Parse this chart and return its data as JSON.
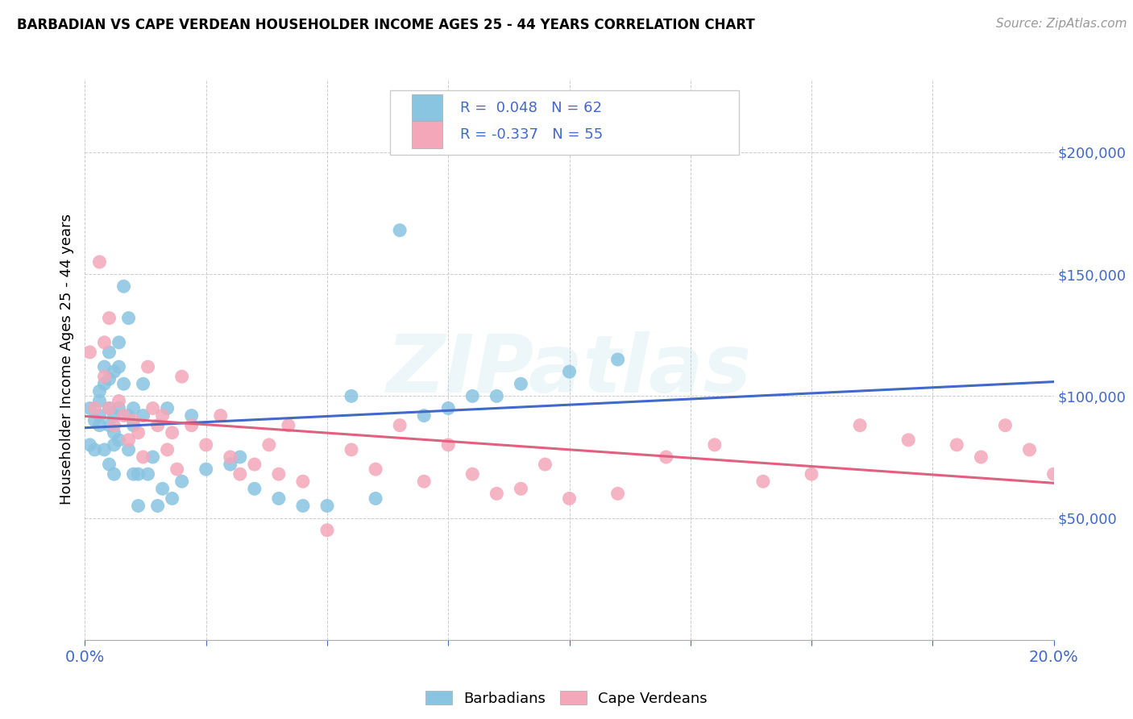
{
  "title": "BARBADIAN VS CAPE VERDEAN HOUSEHOLDER INCOME AGES 25 - 44 YEARS CORRELATION CHART",
  "source": "Source: ZipAtlas.com",
  "ylabel": "Householder Income Ages 25 - 44 years",
  "xmin": 0.0,
  "xmax": 0.2,
  "ymin": 0,
  "ymax": 230000,
  "right_yticks": [
    50000,
    100000,
    150000,
    200000
  ],
  "right_yticklabels": [
    "$50,000",
    "$100,000",
    "$150,000",
    "$200,000"
  ],
  "barbadian_color": "#89c4e1",
  "cape_verdean_color": "#f4a7b9",
  "barbadian_R": 0.048,
  "barbadian_N": 62,
  "cape_verdean_R": -0.337,
  "cape_verdean_N": 55,
  "trend_blue_color": "#4169c8",
  "trend_pink_color": "#e06080",
  "watermark": "ZIPatlas",
  "label_color": "#4169c8",
  "barbadian_x": [
    0.001,
    0.001,
    0.002,
    0.002,
    0.003,
    0.003,
    0.003,
    0.003,
    0.004,
    0.004,
    0.004,
    0.005,
    0.005,
    0.005,
    0.005,
    0.005,
    0.006,
    0.006,
    0.006,
    0.006,
    0.006,
    0.007,
    0.007,
    0.007,
    0.007,
    0.008,
    0.008,
    0.009,
    0.009,
    0.009,
    0.01,
    0.01,
    0.01,
    0.011,
    0.011,
    0.012,
    0.012,
    0.013,
    0.014,
    0.015,
    0.016,
    0.017,
    0.018,
    0.02,
    0.022,
    0.025,
    0.03,
    0.032,
    0.035,
    0.04,
    0.045,
    0.05,
    0.055,
    0.06,
    0.065,
    0.07,
    0.075,
    0.08,
    0.085,
    0.09,
    0.1,
    0.11
  ],
  "barbadian_y": [
    95000,
    80000,
    90000,
    78000,
    88000,
    102000,
    92000,
    98000,
    112000,
    105000,
    78000,
    118000,
    95000,
    88000,
    72000,
    107000,
    110000,
    85000,
    68000,
    92000,
    80000,
    122000,
    95000,
    82000,
    112000,
    145000,
    105000,
    132000,
    92000,
    78000,
    95000,
    88000,
    68000,
    55000,
    68000,
    105000,
    92000,
    68000,
    75000,
    55000,
    62000,
    95000,
    58000,
    65000,
    92000,
    70000,
    72000,
    75000,
    62000,
    58000,
    55000,
    55000,
    100000,
    58000,
    168000,
    92000,
    95000,
    100000,
    100000,
    105000,
    110000,
    115000
  ],
  "cape_verdean_x": [
    0.001,
    0.002,
    0.003,
    0.004,
    0.004,
    0.005,
    0.005,
    0.006,
    0.007,
    0.008,
    0.009,
    0.01,
    0.011,
    0.012,
    0.013,
    0.014,
    0.015,
    0.016,
    0.017,
    0.018,
    0.019,
    0.02,
    0.022,
    0.025,
    0.028,
    0.03,
    0.032,
    0.035,
    0.038,
    0.04,
    0.042,
    0.045,
    0.05,
    0.055,
    0.06,
    0.065,
    0.07,
    0.075,
    0.08,
    0.085,
    0.09,
    0.095,
    0.1,
    0.11,
    0.12,
    0.13,
    0.14,
    0.15,
    0.16,
    0.17,
    0.18,
    0.185,
    0.19,
    0.195,
    0.2
  ],
  "cape_verdean_y": [
    118000,
    95000,
    155000,
    122000,
    108000,
    132000,
    95000,
    88000,
    98000,
    92000,
    82000,
    90000,
    85000,
    75000,
    112000,
    95000,
    88000,
    92000,
    78000,
    85000,
    70000,
    108000,
    88000,
    80000,
    92000,
    75000,
    68000,
    72000,
    80000,
    68000,
    88000,
    65000,
    45000,
    78000,
    70000,
    88000,
    65000,
    80000,
    68000,
    60000,
    62000,
    72000,
    58000,
    60000,
    75000,
    80000,
    65000,
    68000,
    88000,
    82000,
    80000,
    75000,
    88000,
    78000,
    68000
  ]
}
